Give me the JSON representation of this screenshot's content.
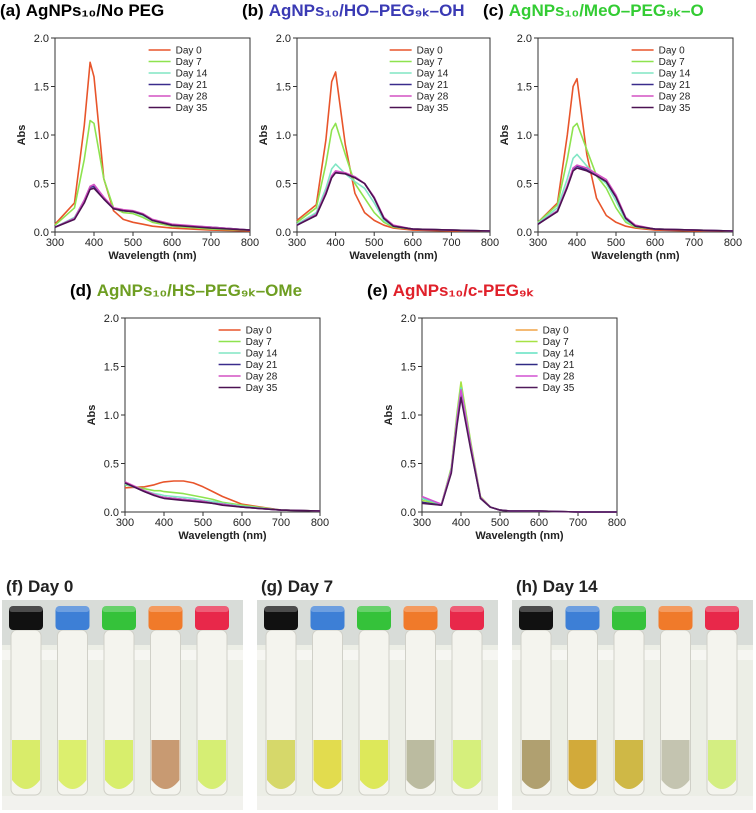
{
  "chart_data": [
    {
      "type": "line",
      "label": "(a)",
      "title": "AgNPs₁₀/No PEG",
      "title_color": "#000000",
      "xlabel": "Wavelength (nm)",
      "ylabel": "Abs",
      "x": [
        300,
        350,
        375,
        390,
        400,
        425,
        450,
        475,
        500,
        525,
        550,
        600,
        700,
        800
      ],
      "xlim": [
        300,
        800
      ],
      "xticks": [
        300,
        400,
        500,
        600,
        700,
        800
      ],
      "ylim": [
        0,
        2
      ],
      "yticks": [
        {
          "value": 0,
          "label": "0.0"
        },
        {
          "value": 0.5,
          "label": "0.5"
        },
        {
          "value": 1,
          "label": "1.0"
        },
        {
          "value": 1.5,
          "label": "1.5"
        },
        {
          "value": 2,
          "label": "2.0"
        }
      ],
      "legend": "upper right",
      "series": [
        {
          "name": "Day 0",
          "color": "#e8552b",
          "values": [
            0.08,
            0.3,
            1.1,
            1.75,
            1.6,
            0.55,
            0.22,
            0.13,
            0.1,
            0.08,
            0.06,
            0.04,
            0.02,
            0.01
          ]
        },
        {
          "name": "Day 7",
          "color": "#8ee34f",
          "values": [
            0.07,
            0.25,
            0.75,
            1.15,
            1.12,
            0.55,
            0.25,
            0.2,
            0.19,
            0.15,
            0.1,
            0.06,
            0.03,
            0.02
          ]
        },
        {
          "name": "Day 14",
          "color": "#80e6c4",
          "values": [
            0.05,
            0.15,
            0.33,
            0.47,
            0.48,
            0.35,
            0.24,
            0.22,
            0.21,
            0.17,
            0.12,
            0.07,
            0.05,
            0.02
          ]
        },
        {
          "name": "Day 21",
          "color": "#3a2c8c",
          "values": [
            0.05,
            0.14,
            0.32,
            0.46,
            0.47,
            0.34,
            0.24,
            0.22,
            0.21,
            0.18,
            0.12,
            0.07,
            0.05,
            0.02
          ]
        },
        {
          "name": "Day 28",
          "color": "#d452c4",
          "values": [
            0.05,
            0.14,
            0.33,
            0.47,
            0.49,
            0.36,
            0.25,
            0.23,
            0.22,
            0.19,
            0.13,
            0.08,
            0.05,
            0.02
          ]
        },
        {
          "name": "Day 35",
          "color": "#4c1252",
          "values": [
            0.05,
            0.13,
            0.3,
            0.44,
            0.45,
            0.34,
            0.24,
            0.22,
            0.21,
            0.18,
            0.12,
            0.07,
            0.04,
            0.02
          ]
        }
      ]
    },
    {
      "type": "line",
      "label": "(b)",
      "title": "AgNPs₁₀/HO–PEG₉ₖ–OH",
      "title_color": "#3a3ab4",
      "xlabel": "Wavelength (nm)",
      "ylabel": "Abs",
      "x": [
        300,
        350,
        375,
        390,
        400,
        425,
        450,
        475,
        500,
        525,
        550,
        600,
        700,
        800
      ],
      "xlim": [
        300,
        800
      ],
      "xticks": [
        300,
        400,
        500,
        600,
        700,
        800
      ],
      "ylim": [
        0,
        2
      ],
      "yticks": [
        {
          "value": 0,
          "label": "0.0"
        },
        {
          "value": 0.5,
          "label": "0.5"
        },
        {
          "value": 1,
          "label": "1.0"
        },
        {
          "value": 1.5,
          "label": "1.5"
        },
        {
          "value": 2,
          "label": "2.0"
        }
      ],
      "legend": "upper right",
      "series": [
        {
          "name": "Day 0",
          "color": "#e8552b",
          "values": [
            0.12,
            0.28,
            0.95,
            1.55,
            1.65,
            0.9,
            0.4,
            0.2,
            0.12,
            0.07,
            0.04,
            0.02,
            0.01,
            0.01
          ]
        },
        {
          "name": "Day 7",
          "color": "#8ee34f",
          "values": [
            0.1,
            0.25,
            0.7,
            1.05,
            1.12,
            0.8,
            0.5,
            0.35,
            0.2,
            0.1,
            0.05,
            0.03,
            0.02,
            0.01
          ]
        },
        {
          "name": "Day 14",
          "color": "#80e6c4",
          "values": [
            0.08,
            0.2,
            0.45,
            0.65,
            0.7,
            0.6,
            0.52,
            0.45,
            0.3,
            0.12,
            0.06,
            0.03,
            0.02,
            0.01
          ]
        },
        {
          "name": "Day 21",
          "color": "#3a2c8c",
          "values": [
            0.07,
            0.18,
            0.4,
            0.57,
            0.62,
            0.6,
            0.56,
            0.5,
            0.35,
            0.14,
            0.06,
            0.03,
            0.02,
            0.01
          ]
        },
        {
          "name": "Day 28",
          "color": "#d452c4",
          "values": [
            0.07,
            0.18,
            0.41,
            0.58,
            0.63,
            0.61,
            0.57,
            0.5,
            0.36,
            0.15,
            0.07,
            0.03,
            0.02,
            0.01
          ]
        },
        {
          "name": "Day 35",
          "color": "#4c1252",
          "values": [
            0.07,
            0.17,
            0.39,
            0.56,
            0.61,
            0.6,
            0.56,
            0.5,
            0.35,
            0.14,
            0.06,
            0.03,
            0.02,
            0.01
          ]
        }
      ]
    },
    {
      "type": "line",
      "label": "(c)",
      "title": "AgNPs₁₀/MeO–PEG₉ₖ–O",
      "title_color": "#33cc33",
      "xlabel": "Wavelength (nm)",
      "ylabel": "Abs",
      "x": [
        300,
        350,
        375,
        390,
        400,
        425,
        450,
        475,
        500,
        525,
        550,
        600,
        700,
        800
      ],
      "xlim": [
        300,
        800
      ],
      "xticks": [
        300,
        400,
        500,
        600,
        700,
        800
      ],
      "ylim": [
        0,
        2
      ],
      "yticks": [
        {
          "value": 0,
          "label": "0.0"
        },
        {
          "value": 0.5,
          "label": "0.5"
        },
        {
          "value": 1,
          "label": "1.0"
        },
        {
          "value": 1.5,
          "label": "1.5"
        },
        {
          "value": 2,
          "label": "2.0"
        }
      ],
      "legend": "upper right",
      "series": [
        {
          "name": "Day 0",
          "color": "#e8552b",
          "values": [
            0.1,
            0.3,
            1.0,
            1.5,
            1.58,
            0.8,
            0.35,
            0.17,
            0.1,
            0.06,
            0.04,
            0.02,
            0.01,
            0.01
          ]
        },
        {
          "name": "Day 7",
          "color": "#8ee34f",
          "values": [
            0.1,
            0.28,
            0.75,
            1.08,
            1.12,
            0.85,
            0.58,
            0.45,
            0.25,
            0.1,
            0.05,
            0.03,
            0.02,
            0.01
          ]
        },
        {
          "name": "Day 14",
          "color": "#80e6c4",
          "values": [
            0.09,
            0.25,
            0.55,
            0.76,
            0.8,
            0.68,
            0.58,
            0.5,
            0.32,
            0.12,
            0.06,
            0.03,
            0.02,
            0.01
          ]
        },
        {
          "name": "Day 21",
          "color": "#3a2c8c",
          "values": [
            0.08,
            0.22,
            0.47,
            0.65,
            0.68,
            0.64,
            0.58,
            0.52,
            0.36,
            0.14,
            0.06,
            0.03,
            0.02,
            0.01
          ]
        },
        {
          "name": "Day 28",
          "color": "#d452c4",
          "values": [
            0.08,
            0.22,
            0.48,
            0.66,
            0.69,
            0.66,
            0.6,
            0.54,
            0.38,
            0.15,
            0.07,
            0.03,
            0.02,
            0.01
          ]
        },
        {
          "name": "Day 35",
          "color": "#4c1252",
          "values": [
            0.08,
            0.21,
            0.46,
            0.63,
            0.66,
            0.63,
            0.58,
            0.52,
            0.36,
            0.14,
            0.06,
            0.03,
            0.02,
            0.01
          ]
        }
      ]
    },
    {
      "type": "line",
      "label": "(d)",
      "title": "AgNPs₁₀/HS–PEG₉ₖ–OMe",
      "title_color": "#6e9e22",
      "xlabel": "Wavelength (nm)",
      "ylabel": "Abs",
      "x": [
        300,
        350,
        375,
        390,
        400,
        425,
        450,
        475,
        500,
        525,
        550,
        600,
        700,
        800
      ],
      "xlim": [
        300,
        800
      ],
      "xticks": [
        300,
        400,
        500,
        600,
        700,
        800
      ],
      "ylim": [
        0,
        2
      ],
      "yticks": [
        {
          "value": 0,
          "label": "0.0"
        },
        {
          "value": 0.5,
          "label": "0.5"
        },
        {
          "value": 1,
          "label": "1.0"
        },
        {
          "value": 1.5,
          "label": "1.5"
        },
        {
          "value": 2,
          "label": "2.0"
        }
      ],
      "legend": "upper right",
      "series": [
        {
          "name": "Day 0",
          "color": "#e8552b",
          "values": [
            0.25,
            0.26,
            0.28,
            0.3,
            0.31,
            0.32,
            0.32,
            0.3,
            0.26,
            0.21,
            0.16,
            0.08,
            0.02,
            0.01
          ]
        },
        {
          "name": "Day 7",
          "color": "#8ee34f",
          "values": [
            0.28,
            0.24,
            0.22,
            0.22,
            0.21,
            0.2,
            0.19,
            0.17,
            0.15,
            0.13,
            0.1,
            0.07,
            0.02,
            0.01
          ]
        },
        {
          "name": "Day 14",
          "color": "#80e6c4",
          "values": [
            0.29,
            0.22,
            0.19,
            0.18,
            0.17,
            0.16,
            0.15,
            0.14,
            0.12,
            0.11,
            0.09,
            0.06,
            0.02,
            0.01
          ]
        },
        {
          "name": "Day 21",
          "color": "#3a2c8c",
          "values": [
            0.3,
            0.21,
            0.17,
            0.16,
            0.15,
            0.14,
            0.13,
            0.12,
            0.11,
            0.09,
            0.08,
            0.05,
            0.02,
            0.01
          ]
        },
        {
          "name": "Day 28",
          "color": "#d452c4",
          "values": [
            0.31,
            0.22,
            0.18,
            0.16,
            0.15,
            0.14,
            0.13,
            0.12,
            0.11,
            0.09,
            0.08,
            0.05,
            0.02,
            0.01
          ]
        },
        {
          "name": "Day 35",
          "color": "#4c1252",
          "values": [
            0.3,
            0.21,
            0.17,
            0.15,
            0.14,
            0.13,
            0.12,
            0.11,
            0.1,
            0.09,
            0.07,
            0.05,
            0.02,
            0.01
          ]
        }
      ]
    },
    {
      "type": "line",
      "label": "(e)",
      "title": "AgNPs₁₀/c-PEG₉ₖ",
      "title_color": "#e0202a",
      "xlabel": "Wavelength (nm)",
      "ylabel": "Abs",
      "x": [
        300,
        350,
        375,
        390,
        400,
        425,
        450,
        475,
        500,
        525,
        550,
        600,
        700,
        800
      ],
      "xlim": [
        300,
        800
      ],
      "xticks": [
        300,
        400,
        500,
        600,
        700,
        800
      ],
      "ylim": [
        0,
        2
      ],
      "yticks": [
        {
          "value": 0,
          "label": "0.0"
        },
        {
          "value": 0.5,
          "label": "0.5"
        },
        {
          "value": 1,
          "label": "1.0"
        },
        {
          "value": 1.5,
          "label": "1.5"
        },
        {
          "value": 2,
          "label": "2.0"
        }
      ],
      "legend": "upper right",
      "series": [
        {
          "name": "Day 0",
          "color": "#f0a446",
          "values": [
            0.15,
            0.08,
            0.45,
            1.0,
            1.3,
            0.7,
            0.15,
            0.05,
            0.02,
            0.01,
            0.01,
            0.01,
            0,
            0
          ]
        },
        {
          "name": "Day 7",
          "color": "#a6e244",
          "values": [
            0.12,
            0.08,
            0.46,
            1.03,
            1.34,
            0.72,
            0.16,
            0.05,
            0.02,
            0.01,
            0.01,
            0.01,
            0,
            0
          ]
        },
        {
          "name": "Day 14",
          "color": "#62e2c2",
          "values": [
            0.14,
            0.08,
            0.44,
            0.98,
            1.28,
            0.69,
            0.15,
            0.05,
            0.02,
            0.01,
            0.01,
            0.01,
            0,
            0
          ]
        },
        {
          "name": "Day 21",
          "color": "#302a84",
          "values": [
            0.1,
            0.07,
            0.42,
            0.94,
            1.22,
            0.66,
            0.14,
            0.05,
            0.02,
            0.01,
            0.01,
            0.01,
            0,
            0
          ]
        },
        {
          "name": "Day 28",
          "color": "#d252d2",
          "values": [
            0.16,
            0.08,
            0.43,
            0.96,
            1.26,
            0.68,
            0.15,
            0.05,
            0.02,
            0.01,
            0.01,
            0.01,
            0,
            0
          ]
        },
        {
          "name": "Day 35",
          "color": "#501a5a",
          "values": [
            0.09,
            0.07,
            0.4,
            0.9,
            1.18,
            0.64,
            0.14,
            0.05,
            0.02,
            0.01,
            0.01,
            0.01,
            0,
            0
          ]
        }
      ]
    }
  ],
  "photos": [
    {
      "label": "(f)",
      "title": "Day 0"
    },
    {
      "label": "(g)",
      "title": "Day 7"
    },
    {
      "label": "(h)",
      "title": "Day 14"
    }
  ]
}
